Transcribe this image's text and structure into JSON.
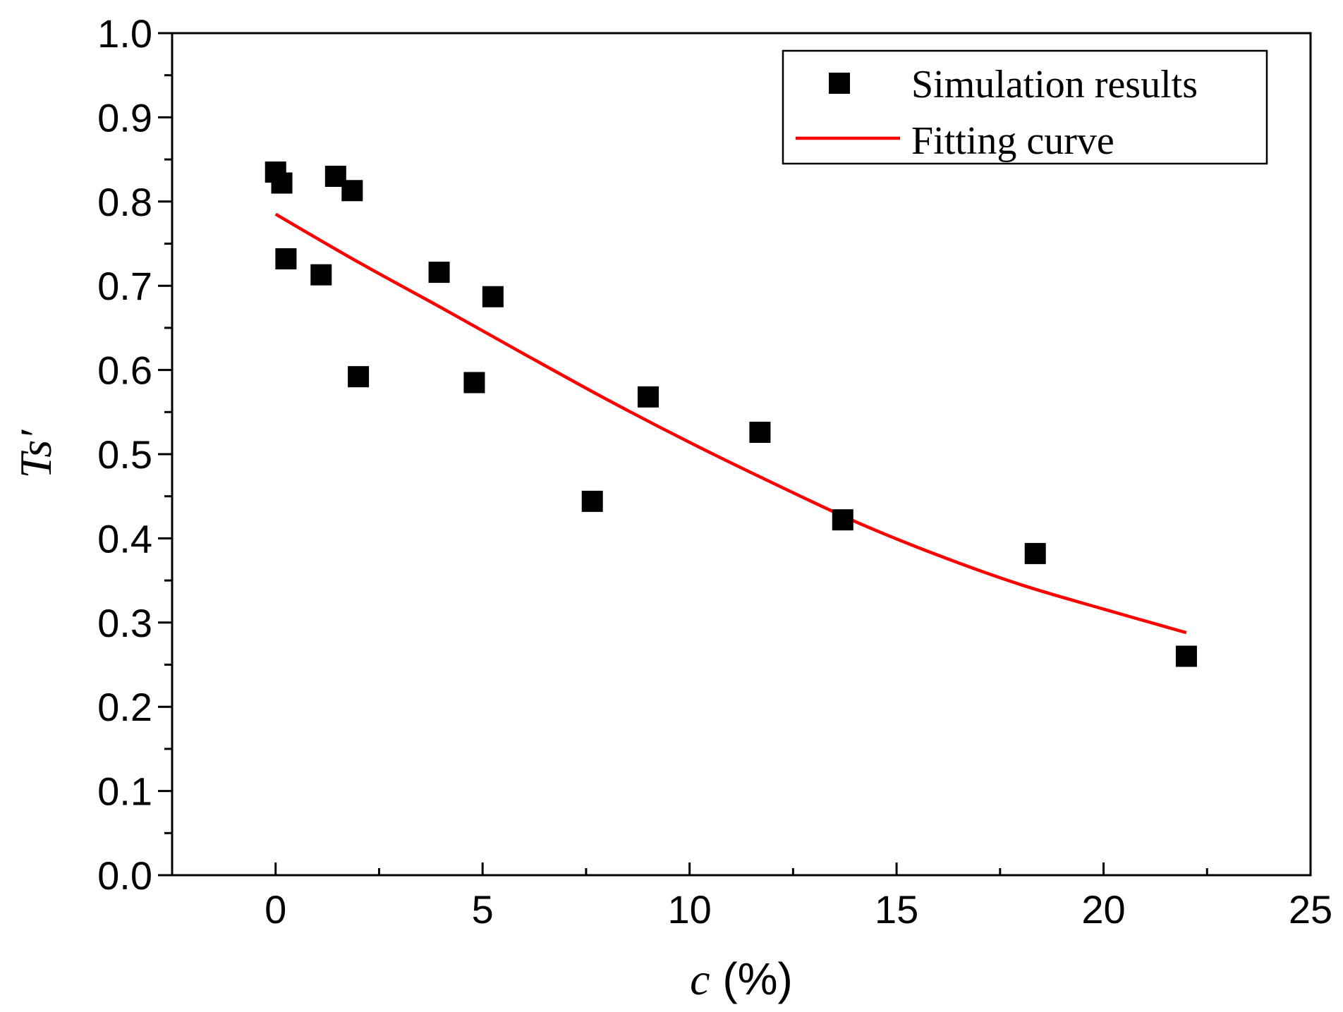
{
  "chart_data": {
    "type": "scatter",
    "title": "",
    "xlabel_var": "c",
    "xlabel_unit": " (%)",
    "ylabel": "Ts′",
    "xlim": [
      -2.5,
      25
    ],
    "ylim": [
      0.0,
      1.0
    ],
    "x_major_ticks": [
      0,
      5,
      10,
      15,
      20,
      25
    ],
    "x_tick_labels": [
      "0",
      "5",
      "10",
      "15",
      "20",
      "25"
    ],
    "y_major_ticks": [
      0.0,
      0.1,
      0.2,
      0.3,
      0.4,
      0.5,
      0.6,
      0.7,
      0.8,
      0.9,
      1.0
    ],
    "y_tick_labels": [
      "0.0",
      "0.1",
      "0.2",
      "0.3",
      "0.4",
      "0.5",
      "0.6",
      "0.7",
      "0.8",
      "0.9",
      "1.0"
    ],
    "grid": false,
    "legend_position": "top-right",
    "series": [
      {
        "name": "Simulation results",
        "kind": "scatter",
        "marker": "square",
        "color": "#000000",
        "points": [
          {
            "x": 0.0,
            "y": 0.835
          },
          {
            "x": 0.15,
            "y": 0.822
          },
          {
            "x": 0.25,
            "y": 0.732
          },
          {
            "x": 1.1,
            "y": 0.713
          },
          {
            "x": 1.45,
            "y": 0.83
          },
          {
            "x": 1.85,
            "y": 0.813
          },
          {
            "x": 2.0,
            "y": 0.592
          },
          {
            "x": 3.95,
            "y": 0.716
          },
          {
            "x": 4.8,
            "y": 0.585
          },
          {
            "x": 5.25,
            "y": 0.687
          },
          {
            "x": 7.65,
            "y": 0.444
          },
          {
            "x": 9.0,
            "y": 0.568
          },
          {
            "x": 11.7,
            "y": 0.526
          },
          {
            "x": 13.7,
            "y": 0.422
          },
          {
            "x": 18.35,
            "y": 0.382
          },
          {
            "x": 22.0,
            "y": 0.26
          }
        ]
      },
      {
        "name": "Fitting curve",
        "kind": "line",
        "color": "#ff0000",
        "points": [
          {
            "x": 0.0,
            "y": 0.785
          },
          {
            "x": 2.0,
            "y": 0.728
          },
          {
            "x": 4.0,
            "y": 0.674
          },
          {
            "x": 6.0,
            "y": 0.619
          },
          {
            "x": 8.0,
            "y": 0.565
          },
          {
            "x": 10.0,
            "y": 0.514
          },
          {
            "x": 12.0,
            "y": 0.466
          },
          {
            "x": 14.0,
            "y": 0.42
          },
          {
            "x": 16.0,
            "y": 0.38
          },
          {
            "x": 18.0,
            "y": 0.345
          },
          {
            "x": 20.0,
            "y": 0.316
          },
          {
            "x": 22.0,
            "y": 0.288
          }
        ]
      }
    ]
  }
}
